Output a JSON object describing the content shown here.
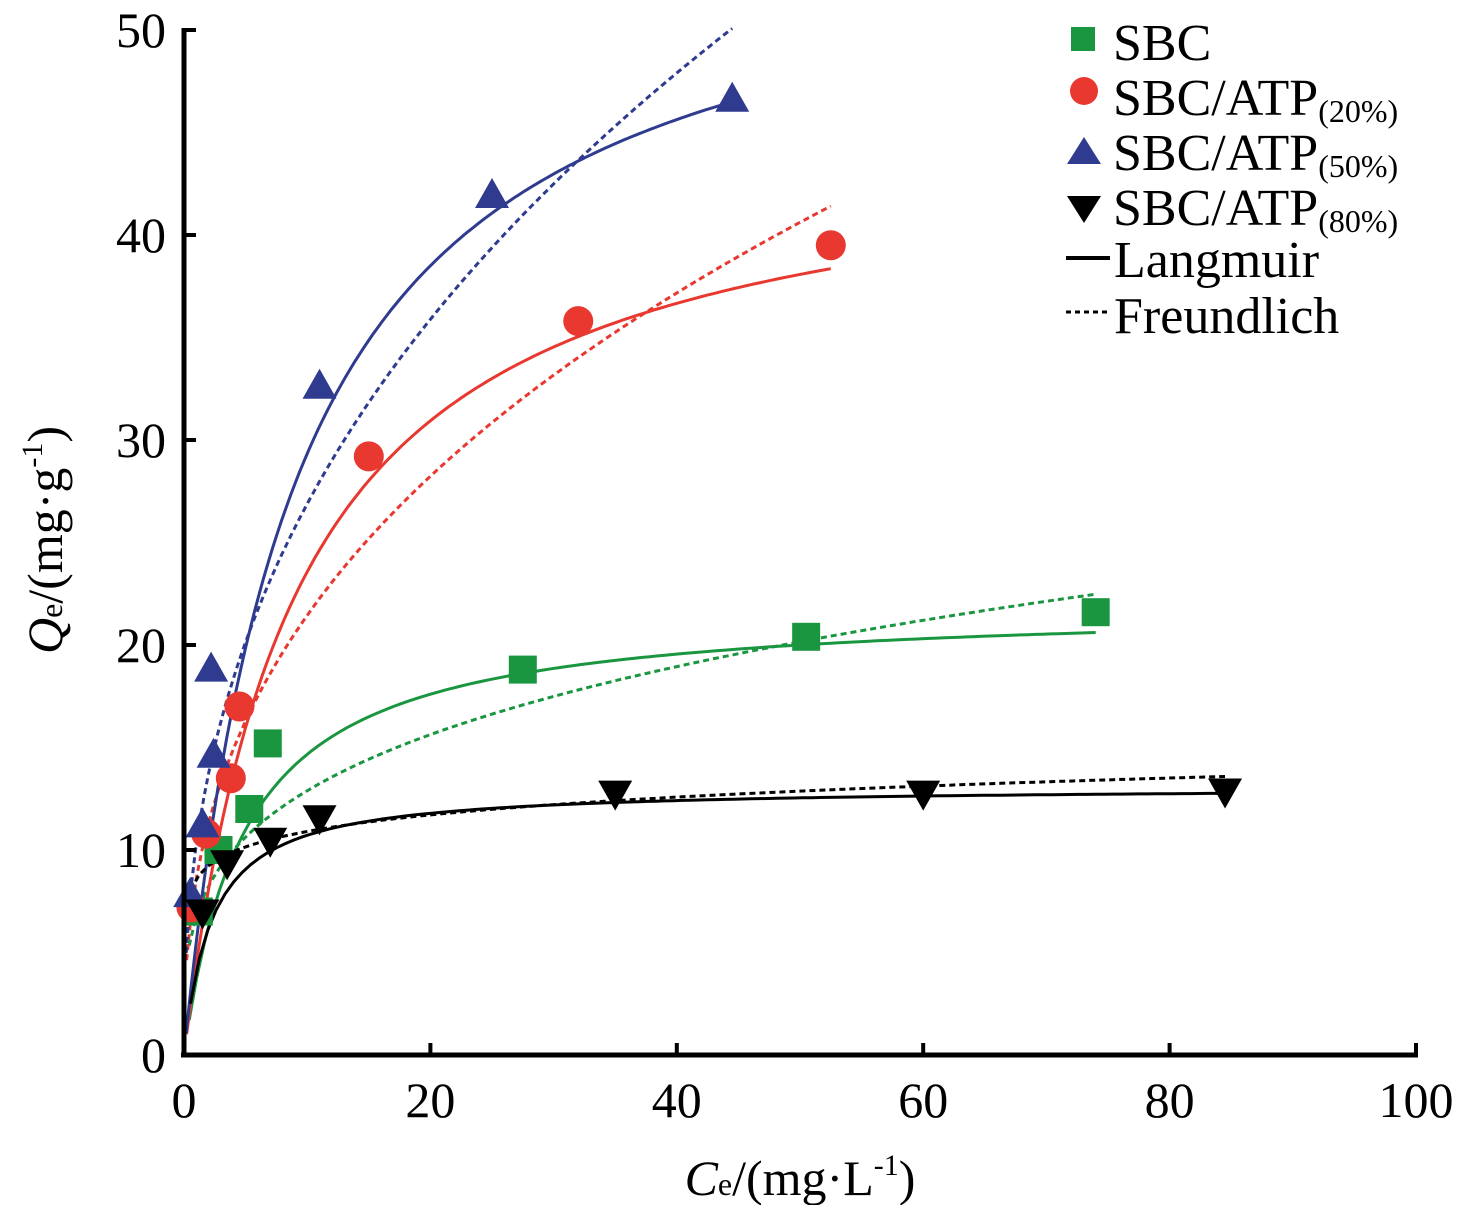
{
  "chart_data": {
    "type": "scatter",
    "title": "",
    "xlabel": {
      "symbol": "C",
      "subscript": "e",
      "unit": "/(mg·L",
      "superscript": "-1",
      "close": ")"
    },
    "ylabel": {
      "symbol": "Q",
      "subscript": "e",
      "unit": "/(mg·g",
      "superscript": "-1",
      "close": ")"
    },
    "xlim": [
      0,
      100
    ],
    "ylim": [
      0,
      50
    ],
    "xticks": [
      0,
      20,
      40,
      60,
      80,
      100
    ],
    "yticks": [
      0,
      10,
      20,
      30,
      40,
      50
    ],
    "grid": false,
    "legend_position": "top-right",
    "series": [
      {
        "name": "SBC",
        "name_suffix": "",
        "color": "#1a9641",
        "marker": "square",
        "points": [
          [
            1.2,
            7.0
          ],
          [
            2.8,
            10.0
          ],
          [
            5.3,
            12.0
          ],
          [
            6.8,
            15.2
          ],
          [
            27.5,
            18.8
          ],
          [
            50.5,
            20.4
          ],
          [
            74.0,
            21.6
          ]
        ],
        "langmuir": {
          "qmax": 22.0,
          "KL": 0.2
        },
        "freundlich": {
          "KF": 6.8,
          "n": 3.6
        }
      },
      {
        "name": "SBC/ATP",
        "name_suffix": "(20%)",
        "color": "#e8382f",
        "marker": "circle",
        "points": [
          [
            0.6,
            7.2
          ],
          [
            1.8,
            10.8
          ],
          [
            3.8,
            13.5
          ],
          [
            4.5,
            17.0
          ],
          [
            15.0,
            29.2
          ],
          [
            32.0,
            35.8
          ],
          [
            52.5,
            39.5
          ]
        ],
        "langmuir": {
          "qmax": 45.0,
          "KL": 0.11
        },
        "freundlich": {
          "KF": 8.6,
          "n": 2.52
        }
      },
      {
        "name": "SBC/ATP",
        "name_suffix": "(50%)",
        "color": "#2e3b8f",
        "marker": "triangle-up",
        "points": [
          [
            0.5,
            7.8
          ],
          [
            1.5,
            11.2
          ],
          [
            2.4,
            14.6
          ],
          [
            2.2,
            18.8
          ],
          [
            11.0,
            32.6
          ],
          [
            25.0,
            41.9
          ],
          [
            44.5,
            46.6
          ]
        ],
        "langmuir": {
          "qmax": 56.0,
          "KL": 0.11
        },
        "freundlich": {
          "KF": 10.3,
          "n": 2.4
        }
      },
      {
        "name": "SBC/ATP",
        "name_suffix": "(80%)",
        "color": "#000000",
        "marker": "triangle-down",
        "points": [
          [
            1.5,
            7.0
          ],
          [
            3.5,
            9.4
          ],
          [
            7.0,
            10.5
          ],
          [
            11.0,
            11.6
          ],
          [
            35.0,
            12.8
          ],
          [
            60.0,
            12.8
          ],
          [
            84.5,
            12.9
          ]
        ],
        "langmuir": {
          "qmax": 13.1,
          "KL": 0.45
        },
        "freundlich": {
          "KF": 8.6,
          "n": 9.7
        }
      }
    ],
    "fit_models": [
      {
        "name": "Langmuir",
        "style": "solid"
      },
      {
        "name": "Freundlich",
        "style": "dashed"
      }
    ]
  }
}
